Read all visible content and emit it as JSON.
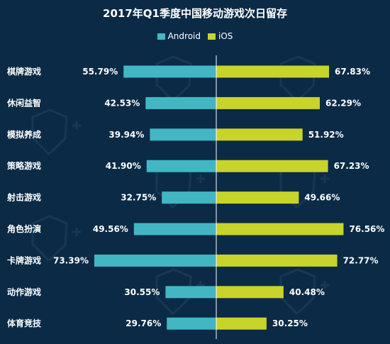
{
  "chart_data": {
    "type": "bar",
    "title": "2017年Q1季度中国移动游戏次日留存",
    "categories": [
      "棋牌游戏",
      "休闲益智",
      "模拟养成",
      "策略游戏",
      "射击游戏",
      "角色扮演",
      "卡牌游戏",
      "动作游戏",
      "体育竞技"
    ],
    "series": [
      {
        "name": "Android",
        "color": "#42b7c3",
        "values": [
          55.79,
          42.53,
          39.94,
          41.9,
          32.75,
          49.56,
          73.39,
          30.55,
          29.76
        ],
        "labels": [
          "55.79%",
          "42.53%",
          "39.94%",
          "41.90%",
          "32.75%",
          "49.56%",
          "73.39%",
          "30.55%",
          "29.76%"
        ]
      },
      {
        "name": "iOS",
        "color": "#c8d32b",
        "values": [
          67.83,
          62.29,
          51.92,
          67.23,
          49.66,
          76.56,
          72.77,
          40.48,
          30.25
        ],
        "labels": [
          "67.83%",
          "62.29%",
          "51.92%",
          "67.23%",
          "49.66%",
          "76.56%",
          "72.77%",
          "40.48%",
          "30.25%"
        ]
      }
    ],
    "layout": "back-to-back horizontal bars",
    "legend_position": "top-center",
    "grid": false
  },
  "colors": {
    "background": "#0b2a45",
    "android": "#42b7c3",
    "ios": "#c8d32b",
    "axis": "#ffffff"
  }
}
